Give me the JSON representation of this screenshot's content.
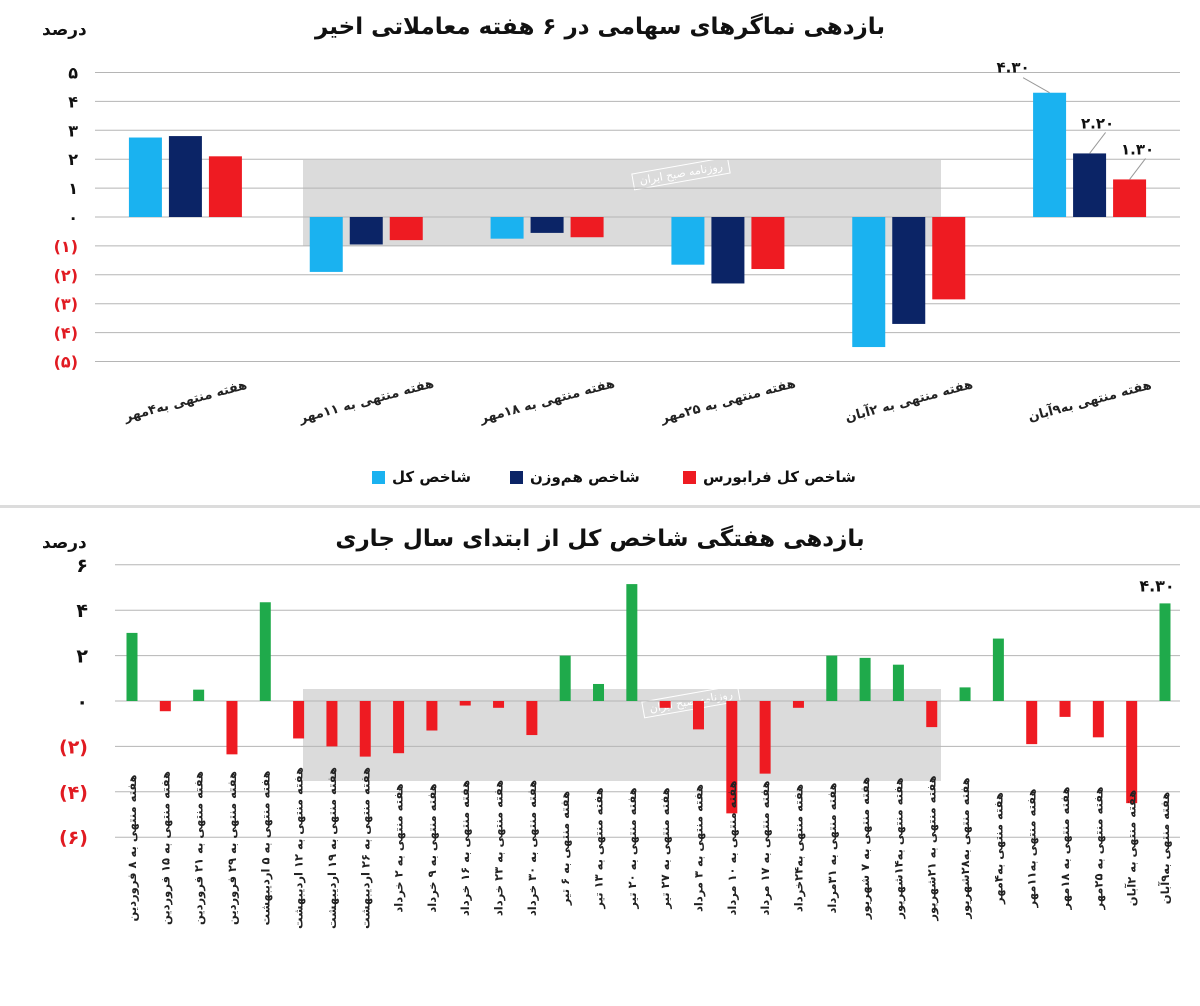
{
  "charts": {
    "top": {
      "title": "بازدهی نماگرهای سهامی در ۶ هفته معاملاتی اخیر",
      "unit": "درصد",
      "watermark": "روزنامه صبح ایران"
    },
    "bottom": {
      "title": "بازدهی هفتگی شاخص کل از ابتدای سال جاری",
      "unit": "درصد",
      "watermark": "روزنامه صبح ایران"
    }
  },
  "legend": [
    {
      "label": "شاخص کل",
      "color": "#1ab2f0"
    },
    {
      "label": "شاخص هم‌وزن",
      "color": "#0b2466"
    },
    {
      "label": "شاخص کل فرابورس",
      "color": "#ee1b22"
    }
  ],
  "chart_data": [
    {
      "type": "bar",
      "title": "بازدهی نماگرهای سهامی در ۶ هفته معاملاتی اخیر",
      "ylabel": "درصد",
      "ylim": [
        -5,
        5
      ],
      "yticks": [
        5,
        4,
        3,
        2,
        1,
        0,
        -1,
        -2,
        -3,
        -4,
        -5
      ],
      "ytick_labels": [
        "۵",
        "۴",
        "۳",
        "۲",
        "۱",
        "۰",
        "(۱)",
        "(۲)",
        "(۳)",
        "(۴)",
        "(۵)"
      ],
      "grid": true,
      "legend_position": "bottom",
      "categories": [
        "هفته منتهی به۴مهر",
        "هفته منتهی به ۱۱مهر",
        "هفته منتهی به ۱۸مهر",
        "هفته منتهی به ۲۵مهر",
        "هفته منتهی به ۲آبان",
        "هفته منتهی به۹آبان"
      ],
      "series": [
        {
          "name": "شاخص کل",
          "color": "#1ab2f0",
          "values": [
            2.75,
            -1.9,
            -0.75,
            -1.65,
            -4.5,
            4.3
          ]
        },
        {
          "name": "شاخص هم‌وزن",
          "color": "#0b2466",
          "values": [
            2.8,
            -0.95,
            -0.55,
            -2.3,
            -3.7,
            2.2
          ]
        },
        {
          "name": "شاخص کل فرابورس",
          "color": "#ee1b22",
          "values": [
            2.1,
            -0.8,
            -0.7,
            -1.8,
            -2.85,
            1.3
          ]
        }
      ],
      "annotations": [
        {
          "series": 0,
          "index": 5,
          "text": "۴.۳۰"
        },
        {
          "series": 1,
          "index": 5,
          "text": "۲.۲۰"
        },
        {
          "series": 2,
          "index": 5,
          "text": "۱.۳۰"
        }
      ]
    },
    {
      "type": "bar",
      "title": "بازدهی هفتگی شاخص کل از ابتدای سال جاری",
      "ylabel": "درصد",
      "ylim": [
        -6,
        6
      ],
      "yticks": [
        6,
        4,
        2,
        0,
        -2,
        -4,
        -6
      ],
      "ytick_labels": [
        "۶",
        "۴",
        "۲",
        "۰",
        "(۲)",
        "(۴)",
        "(۶)"
      ],
      "grid": true,
      "positive_color": "#1faa4b",
      "negative_color": "#ee1b22",
      "categories": [
        "هفته منتهی به ۸ فروردین",
        "هفته منتهی به ۱۵ فروردین",
        "هفته منتهی به ۲۱ فروردین",
        "هفته منتهی به ۲۹ فروردین",
        "هفته منتهی به ۵ اردیبهشت",
        "هفته منتهی به ۱۲ اردیبهشت",
        "هفته منتهی به ۱۹ اردیبهشت",
        "هفته منتهی به ۲۶ اردیبهشت",
        "هفته منتهی به ۲ خرداد",
        "هفته منتهی به ۹ خرداد",
        "هفته منتهی به ۱۶ خرداد",
        "هفته منتهی به ۲۳ خرداد",
        "هفته منتهی به ۳۰ خرداد",
        "هفته منتهی به ۶ تیر",
        "هفته منتهی به ۱۳ تیر",
        "هفته منتهی به ۲۰ تیر",
        "هفته منتهی به ۲۷ تیر",
        "هفته منتهی به ۳ مرداد",
        "هفته منتهی به ۱۰ مرداد",
        "هفته منتهی به ۱۷ مرداد",
        "هفته منتهی به۲۴خرداد",
        "هفته منتهی به ۳۱مرداد",
        "هفته منتهی به ۷ شهریور",
        "هفته منتهی به۱۴شهریور",
        "هفته منتهی به ۲۱شهریور",
        "هفته منتهی به۲۸شهریور",
        "هفته منتهی به۴مهر",
        "هفته منتهی به۱۱مهر",
        "هفته منتهی به ۱۸مهر",
        "هفته منتهی به ۲۵مهر",
        "هفته منتهی به ۲آبان",
        "هفته منتهی به۹آبان"
      ],
      "values": [
        3.0,
        -0.45,
        0.5,
        -2.35,
        4.35,
        -1.65,
        -2.0,
        -2.45,
        -2.3,
        -1.3,
        -0.2,
        -0.3,
        -1.5,
        2.0,
        0.75,
        5.15,
        -0.3,
        -1.25,
        -4.95,
        -3.2,
        -0.3,
        2.0,
        1.9,
        1.6,
        -1.15,
        0.6,
        2.75,
        -1.9,
        -0.7,
        -1.6,
        -4.5,
        4.3
      ],
      "annotations": [
        {
          "index": 31,
          "text": "۴.۳۰"
        }
      ]
    }
  ]
}
